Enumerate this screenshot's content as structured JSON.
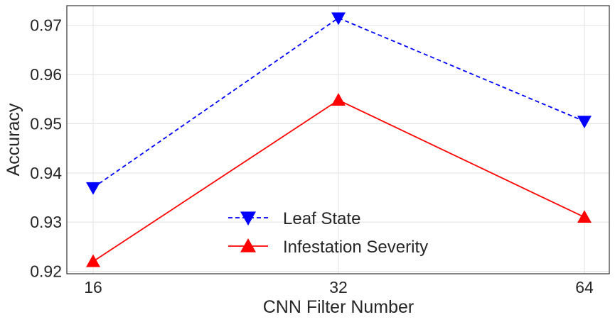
{
  "chart_data": {
    "type": "line",
    "xlabel": "CNN Filter Number",
    "ylabel": "Accuracy",
    "categories": [
      "16",
      "32",
      "64"
    ],
    "yticks": [
      "0.92",
      "0.93",
      "0.94",
      "0.95",
      "0.96",
      "0.97"
    ],
    "ylim": [
      0.9195,
      0.974
    ],
    "grid": true,
    "legend_position": "lower-center",
    "series": [
      {
        "name": "Leaf State",
        "values": [
          0.937,
          0.9715,
          0.9505
        ],
        "color": "#0000ff",
        "line_style": "dashed",
        "marker": "triangle-down"
      },
      {
        "name": "Infestation Severity",
        "values": [
          0.922,
          0.9548,
          0.931
        ],
        "color": "#ff0000",
        "line_style": "solid",
        "marker": "triangle-up"
      }
    ]
  }
}
